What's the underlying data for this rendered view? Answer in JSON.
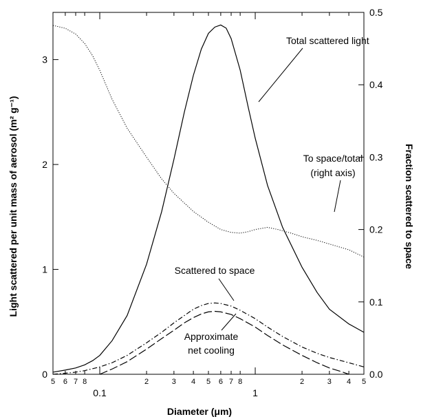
{
  "chart_data": {
    "type": "line",
    "x_scale": "log",
    "xlim": [
      0.05,
      5
    ],
    "ylim_left": [
      0,
      3.45
    ],
    "ylim_right": [
      0,
      0.5
    ],
    "xlabel": "Diameter (μm)",
    "ylabel_left": "Light scattered per unit mass of aerosol (m² g⁻¹)",
    "ylabel_right": "Fraction scattered to space",
    "x_major_ticks": [
      {
        "v": 0.1,
        "label": "0.1"
      },
      {
        "v": 1,
        "label": "1"
      }
    ],
    "x_minor_ticks": [
      {
        "v": 0.05,
        "label": "5"
      },
      {
        "v": 0.06,
        "label": "6"
      },
      {
        "v": 0.07,
        "label": "7"
      },
      {
        "v": 0.08,
        "label": "8"
      },
      {
        "v": 0.2,
        "label": "2"
      },
      {
        "v": 0.3,
        "label": "3"
      },
      {
        "v": 0.4,
        "label": "4"
      },
      {
        "v": 0.5,
        "label": "5"
      },
      {
        "v": 0.6,
        "label": "6"
      },
      {
        "v": 0.7,
        "label": "7"
      },
      {
        "v": 0.8,
        "label": "8"
      },
      {
        "v": 2,
        "label": "2"
      },
      {
        "v": 3,
        "label": "3"
      },
      {
        "v": 4,
        "label": "4"
      },
      {
        "v": 5,
        "label": "5"
      }
    ],
    "y_left_ticks": [
      {
        "v": 0,
        "label": "0"
      },
      {
        "v": 1,
        "label": "1"
      },
      {
        "v": 2,
        "label": "2"
      },
      {
        "v": 3,
        "label": "3"
      }
    ],
    "y_right_ticks": [
      {
        "v": 0,
        "label": "0.0"
      },
      {
        "v": 0.1,
        "label": "0.1"
      },
      {
        "v": 0.2,
        "label": "0.2"
      },
      {
        "v": 0.3,
        "label": "0.3"
      },
      {
        "v": 0.4,
        "label": "0.4"
      },
      {
        "v": 0.5,
        "label": "0.5"
      }
    ],
    "series": [
      {
        "name": "Total scattered light",
        "axis": "left",
        "style": "solid",
        "points": [
          [
            0.05,
            0.02
          ],
          [
            0.06,
            0.04
          ],
          [
            0.07,
            0.06
          ],
          [
            0.08,
            0.09
          ],
          [
            0.09,
            0.13
          ],
          [
            0.1,
            0.18
          ],
          [
            0.12,
            0.32
          ],
          [
            0.15,
            0.56
          ],
          [
            0.2,
            1.05
          ],
          [
            0.25,
            1.55
          ],
          [
            0.3,
            2.05
          ],
          [
            0.35,
            2.5
          ],
          [
            0.4,
            2.85
          ],
          [
            0.45,
            3.1
          ],
          [
            0.5,
            3.25
          ],
          [
            0.55,
            3.31
          ],
          [
            0.6,
            3.33
          ],
          [
            0.65,
            3.3
          ],
          [
            0.7,
            3.2
          ],
          [
            0.8,
            2.9
          ],
          [
            0.9,
            2.55
          ],
          [
            1.0,
            2.25
          ],
          [
            1.2,
            1.8
          ],
          [
            1.5,
            1.4
          ],
          [
            2.0,
            1.02
          ],
          [
            2.5,
            0.78
          ],
          [
            3.0,
            0.62
          ],
          [
            4.0,
            0.48
          ],
          [
            5.0,
            0.4
          ]
        ]
      },
      {
        "name": "Scattered to space",
        "axis": "left",
        "style": "dashdot",
        "points": [
          [
            0.05,
            0.0
          ],
          [
            0.06,
            0.01
          ],
          [
            0.07,
            0.02
          ],
          [
            0.08,
            0.035
          ],
          [
            0.1,
            0.07
          ],
          [
            0.12,
            0.11
          ],
          [
            0.15,
            0.18
          ],
          [
            0.2,
            0.3
          ],
          [
            0.25,
            0.4
          ],
          [
            0.3,
            0.49
          ],
          [
            0.35,
            0.56
          ],
          [
            0.4,
            0.62
          ],
          [
            0.45,
            0.655
          ],
          [
            0.5,
            0.675
          ],
          [
            0.55,
            0.68
          ],
          [
            0.6,
            0.675
          ],
          [
            0.7,
            0.65
          ],
          [
            0.8,
            0.61
          ],
          [
            1.0,
            0.53
          ],
          [
            1.2,
            0.45
          ],
          [
            1.5,
            0.36
          ],
          [
            2.0,
            0.26
          ],
          [
            2.5,
            0.2
          ],
          [
            3.0,
            0.16
          ],
          [
            4.0,
            0.11
          ],
          [
            5.0,
            0.07
          ]
        ]
      },
      {
        "name": "Approximate net cooling",
        "axis": "left",
        "style": "longdash",
        "points": [
          [
            0.1,
            0.0
          ],
          [
            0.12,
            0.05
          ],
          [
            0.15,
            0.12
          ],
          [
            0.2,
            0.24
          ],
          [
            0.25,
            0.34
          ],
          [
            0.3,
            0.42
          ],
          [
            0.35,
            0.49
          ],
          [
            0.4,
            0.54
          ],
          [
            0.45,
            0.575
          ],
          [
            0.5,
            0.595
          ],
          [
            0.55,
            0.6
          ],
          [
            0.6,
            0.595
          ],
          [
            0.7,
            0.57
          ],
          [
            0.8,
            0.53
          ],
          [
            1.0,
            0.45
          ],
          [
            1.2,
            0.37
          ],
          [
            1.5,
            0.28
          ],
          [
            2.0,
            0.18
          ],
          [
            2.5,
            0.11
          ],
          [
            3.0,
            0.06
          ],
          [
            3.5,
            0.03
          ],
          [
            4.0,
            0.0
          ]
        ]
      },
      {
        "name": "To space/total (right axis)",
        "axis": "right",
        "style": "dotted",
        "points": [
          [
            0.05,
            0.482
          ],
          [
            0.06,
            0.478
          ],
          [
            0.07,
            0.47
          ],
          [
            0.08,
            0.457
          ],
          [
            0.09,
            0.44
          ],
          [
            0.1,
            0.42
          ],
          [
            0.12,
            0.38
          ],
          [
            0.15,
            0.34
          ],
          [
            0.2,
            0.3
          ],
          [
            0.25,
            0.27
          ],
          [
            0.3,
            0.25
          ],
          [
            0.4,
            0.225
          ],
          [
            0.5,
            0.21
          ],
          [
            0.6,
            0.2
          ],
          [
            0.7,
            0.196
          ],
          [
            0.8,
            0.195
          ],
          [
            0.9,
            0.197
          ],
          [
            1.0,
            0.2
          ],
          [
            1.2,
            0.203
          ],
          [
            1.4,
            0.2
          ],
          [
            1.7,
            0.195
          ],
          [
            2.0,
            0.19
          ],
          [
            2.5,
            0.185
          ],
          [
            3.0,
            0.18
          ],
          [
            4.0,
            0.172
          ],
          [
            5.0,
            0.162
          ]
        ]
      }
    ],
    "annotations": {
      "total_scattered": "Total scattered light",
      "to_space_total_line1": "To space/total",
      "to_space_total_line2": "(right axis)",
      "scattered_to_space": "Scattered to space",
      "net_cooling_line1": "Approximate",
      "net_cooling_line2": "net cooling"
    }
  }
}
